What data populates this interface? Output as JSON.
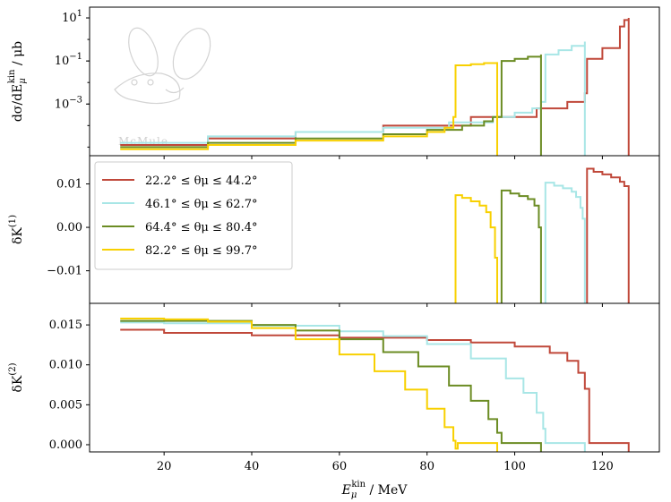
{
  "chart_data": {
    "type": "line",
    "subtype": "step",
    "shared_x": {
      "label_parts": [
        "E",
        "μ",
        "kin",
        " / MeV"
      ],
      "range": [
        3,
        133
      ],
      "ticks": [
        20,
        40,
        60,
        80,
        100,
        120
      ],
      "tick_labels": [
        "20",
        "40",
        "60",
        "80",
        "100",
        "120"
      ]
    },
    "watermark": "McMule",
    "legend": {
      "placement": "upper-left of middle panel",
      "entries": [
        {
          "label": "22.2° ≤ θμ ≤ 44.2°",
          "color": "#c0483a"
        },
        {
          "label": "46.1° ≤ θμ ≤ 62.7°",
          "color": "#a8e6e6"
        },
        {
          "label": "64.4° ≤ θμ ≤ 80.4°",
          "color": "#6b8c23"
        },
        {
          "label": "82.2° ≤ θμ ≤ 99.7°",
          "color": "#f8d000"
        }
      ]
    },
    "series": [
      {
        "color": "#c0483a",
        "x_range": [
          10,
          126
        ],
        "jump_x": 116.5
      },
      {
        "color": "#a8e6e6",
        "x_range": [
          10,
          116
        ],
        "jump_x": 107
      },
      {
        "color": "#6b8c23",
        "x_range": [
          10,
          106
        ],
        "jump_x": 97
      },
      {
        "color": "#f8d000",
        "x_range": [
          10,
          96
        ],
        "jump_x": 86.5
      }
    ],
    "panels": [
      {
        "id": "cross-section",
        "ylabel_parts": [
          "dσ/dE",
          "μ",
          "kin",
          " / μb"
        ],
        "yscale": "log",
        "ylim_log10": [
          -5.4,
          1.5
        ],
        "ticks_log10": [
          1,
          -1,
          -3
        ],
        "tick_labels": [
          "10",
          "10",
          "10"
        ],
        "tick_exponents": [
          "1",
          "−1",
          "−3"
        ],
        "series_points": [
          [
            [
              10,
              -4.9
            ],
            [
              30,
              -4.6
            ],
            [
              50,
              -4.3
            ],
            [
              70,
              -4.0
            ],
            [
              90,
              -3.6
            ],
            [
              105,
              -3.2
            ],
            [
              112,
              -2.9
            ],
            [
              116,
              -2.5
            ],
            [
              116.5,
              -0.9
            ],
            [
              120,
              -0.4
            ],
            [
              124,
              0.6
            ],
            [
              125,
              0.9
            ],
            [
              126,
              1.0
            ]
          ],
          [
            [
              10,
              -4.8
            ],
            [
              30,
              -4.5
            ],
            [
              50,
              -4.3
            ],
            [
              70,
              -4.1
            ],
            [
              85,
              -3.85
            ],
            [
              95,
              -3.6
            ],
            [
              100,
              -3.4
            ],
            [
              104,
              -3.2
            ],
            [
              106,
              -2.9
            ],
            [
              107,
              -0.7
            ],
            [
              110,
              -0.5
            ],
            [
              113,
              -0.3
            ],
            [
              116,
              -0.1
            ]
          ],
          [
            [
              10,
              -5.0
            ],
            [
              30,
              -4.8
            ],
            [
              50,
              -4.6
            ],
            [
              70,
              -4.4
            ],
            [
              80,
              -4.2
            ],
            [
              88,
              -4.0
            ],
            [
              93,
              -3.8
            ],
            [
              95,
              -3.6
            ],
            [
              97,
              -1.0
            ],
            [
              100,
              -0.9
            ],
            [
              103,
              -0.8
            ],
            [
              106,
              -0.7
            ]
          ],
          [
            [
              10,
              -5.1
            ],
            [
              30,
              -4.9
            ],
            [
              50,
              -4.7
            ],
            [
              70,
              -4.5
            ],
            [
              80,
              -4.3
            ],
            [
              84,
              -4.1
            ],
            [
              86,
              -3.6
            ],
            [
              86.5,
              -1.2
            ],
            [
              90,
              -1.15
            ],
            [
              93,
              -1.1
            ],
            [
              96,
              -1.05
            ]
          ]
        ]
      },
      {
        "id": "delta-k1",
        "ylabel_parts": [
          "δK",
          "(1)"
        ],
        "yscale": "linear",
        "ylim": [
          -0.0175,
          0.0165
        ],
        "ticks": [
          0.01,
          0.0,
          -0.01
        ],
        "tick_labels": [
          "0.01",
          "0.00",
          "−0.01"
        ],
        "series_points": [
          [
            [
              116.5,
              0.0135
            ],
            [
              118,
              0.0128
            ],
            [
              120,
              0.0122
            ],
            [
              122,
              0.0115
            ],
            [
              124,
              0.0105
            ],
            [
              125,
              0.0095
            ],
            [
              126,
              0.0085
            ]
          ],
          [
            [
              107,
              0.0103
            ],
            [
              109,
              0.0096
            ],
            [
              111,
              0.009
            ],
            [
              113,
              0.0082
            ],
            [
              114,
              0.007
            ],
            [
              115,
              0.0045
            ],
            [
              115.5,
              0.002
            ],
            [
              116,
              -0.015
            ]
          ],
          [
            [
              97,
              0.0085
            ],
            [
              99,
              0.0078
            ],
            [
              101,
              0.0072
            ],
            [
              103,
              0.0065
            ],
            [
              104.5,
              0.005
            ],
            [
              105.5,
              0.0
            ],
            [
              106,
              -0.005
            ]
          ],
          [
            [
              86.5,
              0.0074
            ],
            [
              88,
              0.0068
            ],
            [
              90,
              0.006
            ],
            [
              92,
              0.005
            ],
            [
              93.5,
              0.0035
            ],
            [
              94.5,
              0.0
            ],
            [
              95.5,
              -0.007
            ],
            [
              96,
              -0.012
            ]
          ]
        ]
      },
      {
        "id": "delta-k2",
        "ylabel_parts": [
          "δK",
          "(2)"
        ],
        "yscale": "linear",
        "ylim": [
          -0.0009,
          0.0177
        ],
        "ticks": [
          0.015,
          0.01,
          0.005,
          0.0
        ],
        "tick_labels": [
          "0.015",
          "0.010",
          "0.005",
          "0.000"
        ],
        "series_points": [
          [
            [
              10,
              0.0144
            ],
            [
              20,
              0.014
            ],
            [
              40,
              0.0137
            ],
            [
              60,
              0.0134
            ],
            [
              80,
              0.0131
            ],
            [
              90,
              0.0128
            ],
            [
              100,
              0.0123
            ],
            [
              108,
              0.0115
            ],
            [
              112,
              0.0105
            ],
            [
              114.5,
              0.009
            ],
            [
              116,
              0.007
            ],
            [
              117,
              0.0002
            ],
            [
              126,
              0.0002
            ]
          ],
          [
            [
              10,
              0.0153
            ],
            [
              20,
              0.0152
            ],
            [
              40,
              0.0149
            ],
            [
              60,
              0.0142
            ],
            [
              70,
              0.0136
            ],
            [
              80,
              0.0126
            ],
            [
              90,
              0.0108
            ],
            [
              98,
              0.0083
            ],
            [
              102,
              0.0065
            ],
            [
              105,
              0.004
            ],
            [
              106.5,
              0.002
            ],
            [
              107,
              0.0002
            ],
            [
              116,
              0.0002
            ]
          ],
          [
            [
              10,
              0.0155
            ],
            [
              20,
              0.0155
            ],
            [
              40,
              0.015
            ],
            [
              50,
              0.0143
            ],
            [
              60,
              0.0132
            ],
            [
              70,
              0.0116
            ],
            [
              78,
              0.0098
            ],
            [
              85,
              0.0074
            ],
            [
              90,
              0.0055
            ],
            [
              94,
              0.0032
            ],
            [
              96,
              0.0015
            ],
            [
              97,
              0.0002
            ],
            [
              106,
              0.0002
            ]
          ],
          [
            [
              10,
              0.0158
            ],
            [
              20,
              0.0157
            ],
            [
              30,
              0.0154
            ],
            [
              40,
              0.0146
            ],
            [
              50,
              0.0132
            ],
            [
              60,
              0.0113
            ],
            [
              68,
              0.0092
            ],
            [
              75,
              0.0069
            ],
            [
              80,
              0.0045
            ],
            [
              84,
              0.0022
            ],
            [
              86,
              0.0005
            ],
            [
              86.5,
              -0.0005
            ],
            [
              87,
              0.0002
            ],
            [
              96,
              0.0002
            ]
          ]
        ]
      }
    ]
  }
}
